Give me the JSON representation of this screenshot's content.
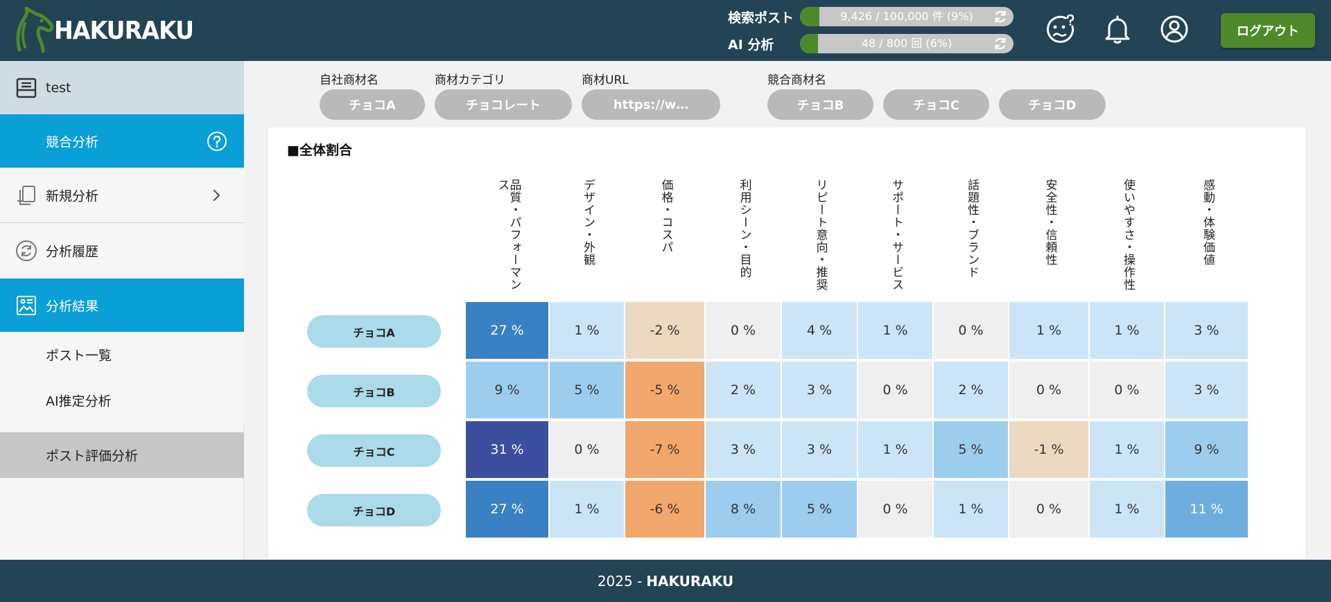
{
  "app": {
    "brand": "HAKURAKU"
  },
  "header": {
    "quotas": [
      {
        "label": "検索ポスト",
        "text": "9,426 / 100,000 件 (9%)",
        "percent": 9
      },
      {
        "label": "AI 分析",
        "text": "48 / 800 回 (6%)",
        "percent": 6
      }
    ],
    "logout_label": "ログアウト"
  },
  "sidebar": {
    "workspace": "test",
    "competitive": "競合分析",
    "new_analysis": "新規分析",
    "history": "分析履歴",
    "results": "分析結果",
    "sub_items": [
      "ポスト一覧",
      "AI推定分析",
      "ポスト評価分析"
    ]
  },
  "filters": {
    "own_label": "自社商材名",
    "own_value": "チョコA",
    "category_label": "商材カテゴリ",
    "category_value": "チョコレート",
    "url_label": "商材URL",
    "url_value": "https://w…",
    "competitors_label": "競合商材名",
    "competitors": [
      "チョコB",
      "チョコC",
      "チョコD"
    ]
  },
  "main": {
    "section_title": "■全体割合",
    "columns": [
      "品質・パフォーマンス",
      "デザイン・外観",
      "価格・コスパ",
      "利用シーン・目的",
      "リピート意向・推奨",
      "サポート・サービス",
      "話題性・ブランド",
      "安全性・信頼性",
      "使いやすさ・操作性",
      "感動・体験価値"
    ],
    "rows": [
      {
        "name": "チョコA",
        "cells": [
          "27 %",
          "1 %",
          "-2 %",
          "0 %",
          "4 %",
          "1 %",
          "0 %",
          "1 %",
          "1 %",
          "3 %"
        ],
        "values": [
          27,
          1,
          -2,
          0,
          4,
          1,
          0,
          1,
          1,
          3
        ]
      },
      {
        "name": "チョコB",
        "cells": [
          "9 %",
          "5 %",
          "-5 %",
          "2 %",
          "3 %",
          "0 %",
          "2 %",
          "0 %",
          "0 %",
          "3 %"
        ],
        "values": [
          9,
          5,
          -5,
          2,
          3,
          0,
          2,
          0,
          0,
          3
        ]
      },
      {
        "name": "チョコC",
        "cells": [
          "31 %",
          "0 %",
          "-7 %",
          "3 %",
          "3 %",
          "1 %",
          "5 %",
          "-1 %",
          "1 %",
          "9 %"
        ],
        "values": [
          31,
          0,
          -7,
          3,
          3,
          1,
          5,
          -1,
          1,
          9
        ]
      },
      {
        "name": "チョコD",
        "cells": [
          "27 %",
          "1 %",
          "-6 %",
          "8 %",
          "5 %",
          "0 %",
          "1 %",
          "0 %",
          "1 %",
          "11 %"
        ],
        "values": [
          27,
          1,
          -6,
          8,
          5,
          0,
          1,
          0,
          1,
          11
        ]
      }
    ]
  },
  "footer": {
    "year": "2025 -",
    "brand": "HAKURAKU"
  }
}
